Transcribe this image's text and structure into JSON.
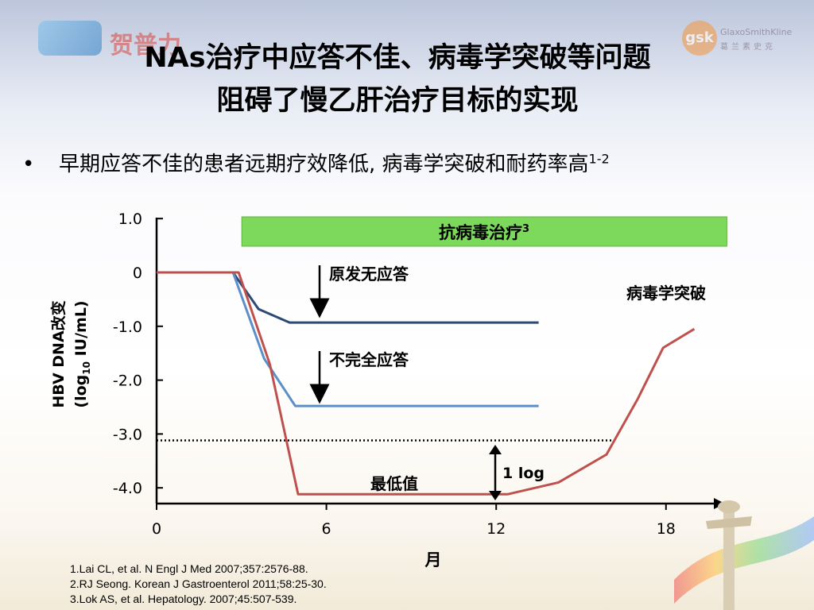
{
  "header": {
    "title_line1": "NAs治疗中应答不佳、病毒学突破等问题",
    "title_line2": "阻碍了慢乙肝治疗目标的实现",
    "logo_left_text": "贺普力",
    "logo_right_mark": "gsk",
    "logo_right_name": "GlaxoSmithKline",
    "logo_right_cn": "葛兰素史克"
  },
  "bullet": {
    "symbol": "•",
    "text": "早期应答不佳的患者远期疗效降低, 病毒学突破和耐药率高",
    "sup": "1-2"
  },
  "chart_data": {
    "type": "line",
    "ylabel_line1": "HBV DNA改变",
    "ylabel_line2_prefix": "(log",
    "ylabel_line2_sub": "10",
    "ylabel_line2_suffix": " IU/mL)",
    "xlabel": "月",
    "xlim": [
      0,
      20
    ],
    "ylim": [
      -4.2,
      1.0
    ],
    "yticks": [
      1.0,
      0,
      -1.0,
      -2.0,
      -3.0,
      -4.0
    ],
    "ytick_labels": [
      "1.0",
      "0",
      "-1.0",
      "-2.0",
      "-3.0",
      "-4.0"
    ],
    "xticks": [
      0,
      6,
      12,
      18
    ],
    "xtick_labels": [
      "0",
      "6",
      "12",
      "18"
    ],
    "series": [
      {
        "key": "nonresponse",
        "color": "#2b4a74",
        "x": [
          0,
          2.7,
          3.6,
          4.7,
          13.5
        ],
        "y": [
          0,
          0,
          -0.68,
          -0.93,
          -0.93
        ]
      },
      {
        "key": "partial",
        "color": "#5b8fc7",
        "x": [
          0,
          2.7,
          3.8,
          4.9,
          13.5
        ],
        "y": [
          0,
          0,
          -1.6,
          -2.48,
          -2.48
        ]
      },
      {
        "key": "breakthrough",
        "color": "#c0504d",
        "x": [
          0,
          2.9,
          4.0,
          5.0,
          12.4,
          14.2,
          15.9,
          17.0,
          17.9,
          19.0
        ],
        "y": [
          0,
          0,
          -1.7,
          -4.12,
          -4.12,
          -3.9,
          -3.38,
          -2.35,
          -1.4,
          -1.05
        ]
      }
    ],
    "threshold": {
      "y": -3.12,
      "style": "dotted",
      "color": "#000000"
    },
    "treatment_bar": {
      "label": "抗病毒治疗",
      "sup": "3",
      "x_start": 3.0,
      "x_end": 20.0,
      "color": "#7dd95b"
    },
    "annotations": {
      "primary_nonresponse": "原发无应答",
      "partial_response": "不完全应答",
      "nadir": "最低值",
      "breakthrough": "病毒学突破",
      "one_log": "1 log"
    }
  },
  "references": [
    "1.Lai CL, et al. N Engl J Med 2007;357:2576-88.",
    "2.RJ Seong. Korean J Gastroenterol 2011;58:25-30.",
    "3.Lok AS, et al. Hepatology. 2007;45:507-539."
  ]
}
